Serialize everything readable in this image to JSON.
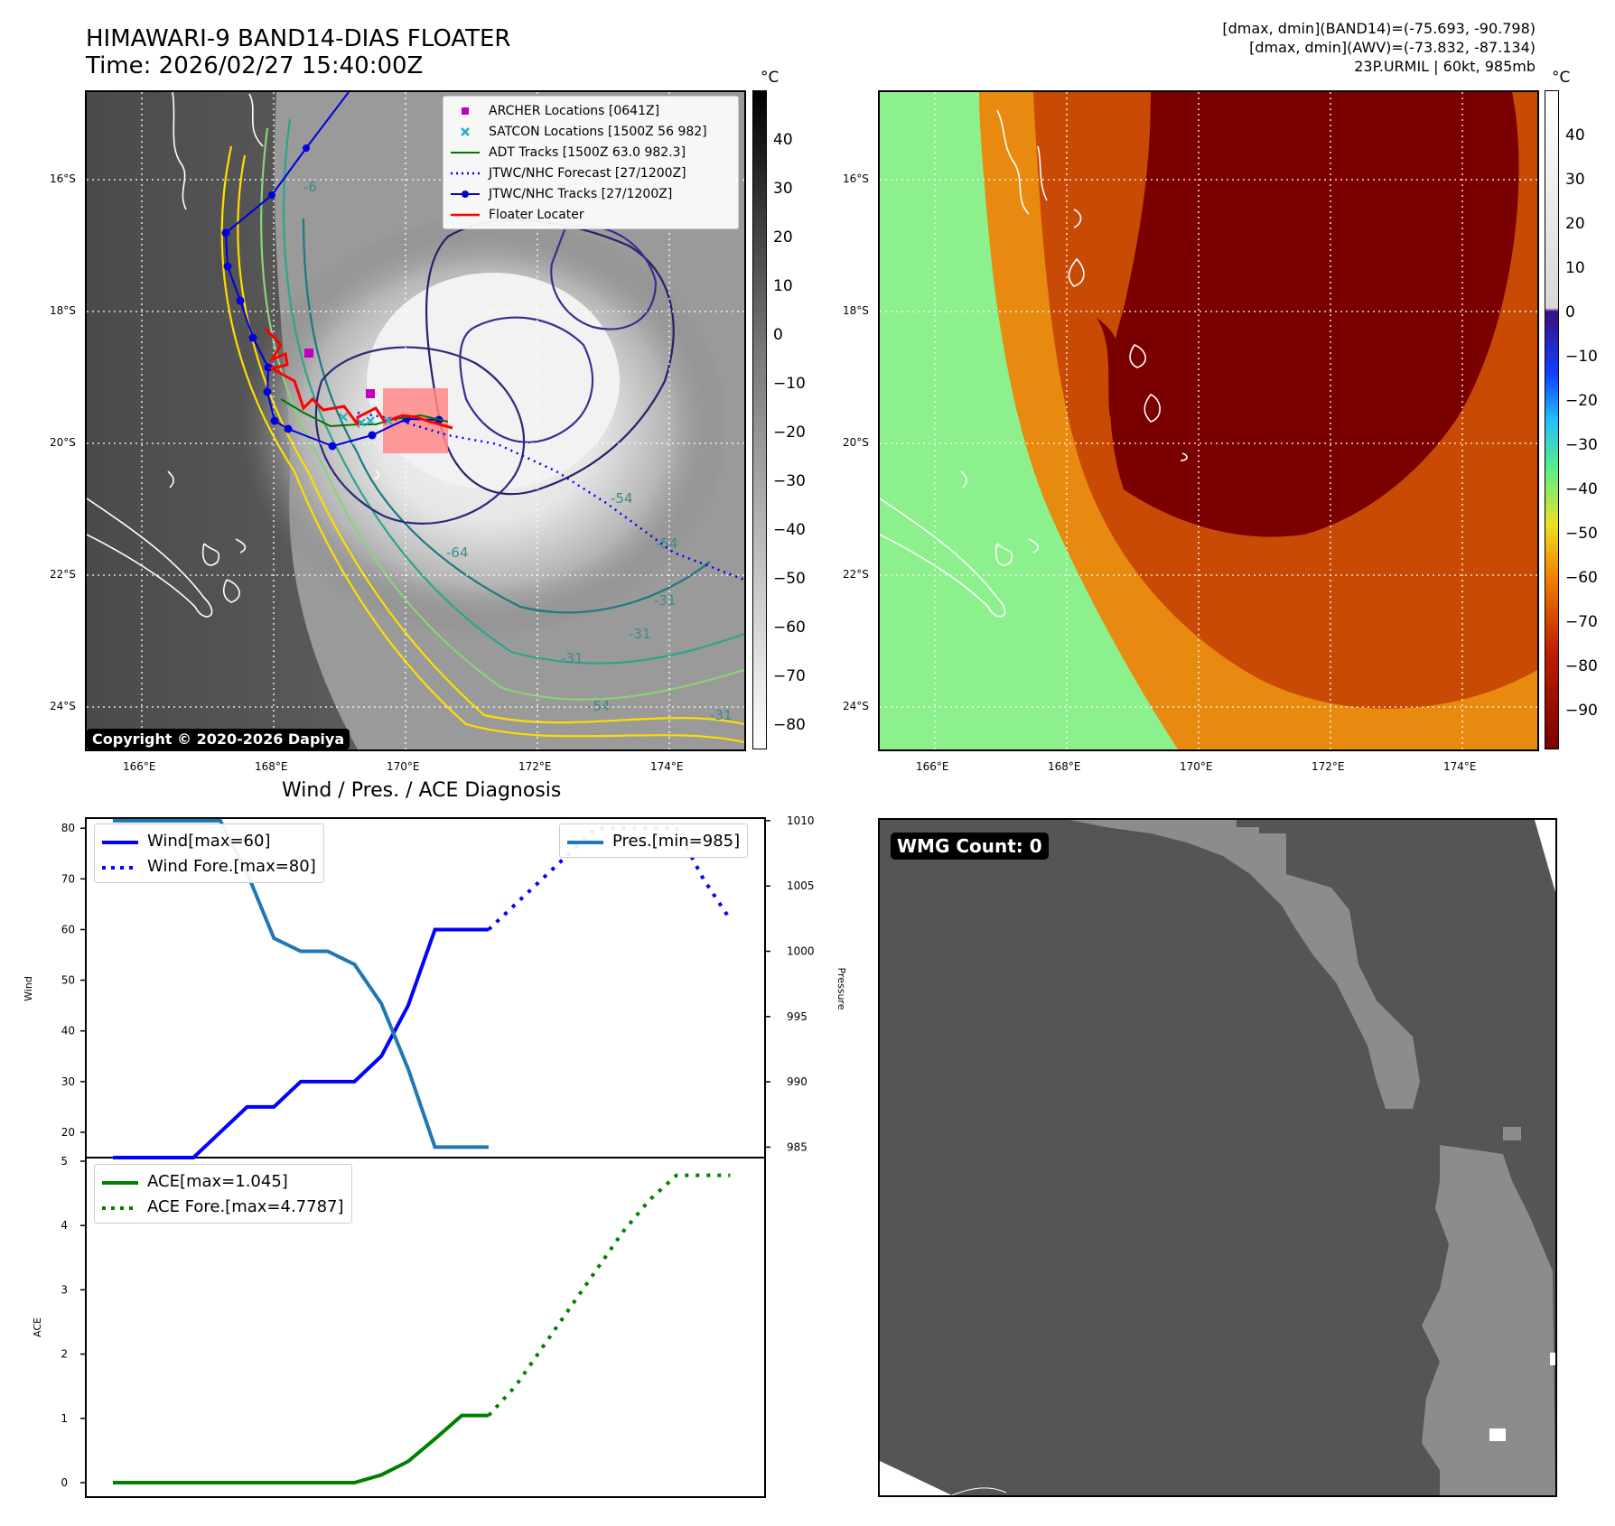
{
  "header": {
    "title_line1": "HIMAWARI-9 BAND14-DIAS FLOATER",
    "title_line2": "Time: 2026/02/27 15:40:00Z",
    "info_line1": "[dmax, dmin](BAND14)=(-75.693, -90.798)",
    "info_line2": "[dmax, dmin](AWV)=(-73.832, -87.134)",
    "info_line3": "23P.URMIL | 60kt, 985mb"
  },
  "map": {
    "lat_labels": [
      "16°S",
      "18°S",
      "20°S",
      "22°S",
      "24°S"
    ],
    "lon_labels": [
      "166°E",
      "168°E",
      "170°E",
      "172°E",
      "174°E"
    ],
    "copyright": "Copyright © 2020-2026 Dapiya",
    "contour_labels": [
      "-6",
      "-64",
      "-54",
      "-54",
      "-31",
      "-31",
      "-31",
      "-31",
      "-54"
    ],
    "legend": [
      {
        "label": "ARCHER Locations [0641Z]",
        "color": "#c000c0",
        "icon": "square-marker-icon"
      },
      {
        "label": "SATCON Locations [1500Z 56 982]",
        "color": "#1fb0c0",
        "icon": "x-marker-icon"
      },
      {
        "label": "ADT Tracks [1500Z 63.0 982.3]",
        "color": "#007700",
        "icon": "solid-line-icon"
      },
      {
        "label": "JTWC/NHC Forecast [27/1200Z]",
        "color": "#0000ff",
        "icon": "dotted-line-icon"
      },
      {
        "label": "JTWC/NHC Tracks [27/1200Z]",
        "color": "#0000cc",
        "icon": "line-dot-icon"
      },
      {
        "label": "Floater Locater",
        "color": "#ff0000",
        "icon": "solid-line-icon"
      }
    ]
  },
  "colorbar_left": {
    "unit": "°C",
    "ticks": [
      "40",
      "30",
      "20",
      "10",
      "0",
      "−10",
      "−20",
      "−30",
      "−40",
      "−50",
      "−60",
      "−70",
      "−80"
    ]
  },
  "colorbar_right": {
    "unit": "°C",
    "ticks": [
      "40",
      "30",
      "20",
      "10",
      "0",
      "−10",
      "−20",
      "−30",
      "−40",
      "−50",
      "−60",
      "−70",
      "−80",
      "−90"
    ]
  },
  "wmg": {
    "label": "WMG Count: 0"
  },
  "colors": {
    "wind": "#0000ff",
    "pressure": "#1f77b4",
    "ace": "#008000",
    "red_box": "#ff8888",
    "cloud_hot": "#7a0000",
    "env_green": "#8cf08c"
  },
  "chart_data": [
    {
      "type": "line",
      "title": "Wind / Pres. / ACE Diagnosis",
      "ylabel": "Wind",
      "y2label": "Pressure",
      "ylim": [
        15,
        82
      ],
      "y2lim": [
        984.2,
        1010.2
      ],
      "yticks": [
        20,
        30,
        40,
        50,
        60,
        70,
        80
      ],
      "y2ticks": [
        985,
        990,
        995,
        1000,
        1005,
        1010
      ],
      "x": [
        0,
        1,
        2,
        3,
        4,
        5,
        6,
        7,
        8,
        9,
        10,
        11,
        12,
        13,
        14,
        15,
        16,
        17,
        18,
        19,
        20,
        21,
        22,
        23
      ],
      "series": [
        {
          "name": "Wind[max=60]",
          "style": "solid",
          "axis": "left",
          "x": [
            0,
            1,
            2,
            3,
            4,
            5,
            6,
            7,
            8,
            9,
            10,
            11,
            12,
            13,
            14
          ],
          "values": [
            15,
            15,
            15,
            15,
            20,
            25,
            25,
            30,
            30,
            30,
            35,
            45,
            60,
            60,
            60
          ]
        },
        {
          "name": "Wind Fore.[max=80]",
          "style": "dotted",
          "axis": "left",
          "x": [
            14,
            15,
            16,
            17,
            18,
            19,
            20,
            21,
            22,
            23
          ],
          "values": [
            60,
            65,
            70,
            75,
            80,
            80,
            80,
            80,
            70,
            62
          ]
        },
        {
          "name": "Pres.[min=985]",
          "style": "solid",
          "axis": "right",
          "x": [
            0,
            1,
            2,
            3,
            4,
            5,
            6,
            7,
            8,
            9,
            10,
            11,
            12,
            13,
            14
          ],
          "values": [
            1010,
            1010,
            1010,
            1010,
            1010,
            1006,
            1001,
            1000,
            1000,
            999,
            996,
            991,
            985,
            985,
            985
          ]
        }
      ]
    },
    {
      "type": "line",
      "ylabel": "ACE",
      "ylim": [
        -0.2,
        5
      ],
      "yticks": [
        0,
        1,
        2,
        3,
        4,
        5
      ],
      "series": [
        {
          "name": "ACE[max=1.045]",
          "style": "solid",
          "x": [
            0,
            1,
            2,
            3,
            4,
            5,
            6,
            7,
            8,
            9,
            10,
            11,
            12,
            13,
            14
          ],
          "values": [
            0,
            0,
            0,
            0,
            0,
            0,
            0,
            0,
            0,
            0,
            0.12,
            0.33,
            0.68,
            1.045,
            1.045
          ]
        },
        {
          "name": "ACE Fore.[max=4.7787]",
          "style": "dotted",
          "x": [
            14,
            15,
            16,
            17,
            18,
            19,
            20,
            21,
            22,
            23
          ],
          "values": [
            1.045,
            1.5,
            2.1,
            2.7,
            3.3,
            3.9,
            4.4,
            4.78,
            4.78,
            4.78
          ]
        }
      ]
    }
  ]
}
